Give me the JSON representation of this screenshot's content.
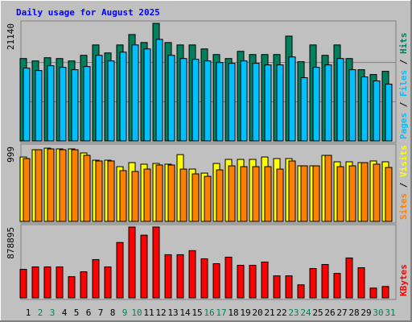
{
  "chart_data": [
    {
      "type": "bar",
      "title": "Daily usage for August 2025",
      "title_color": "#0000ff",
      "legend_separator": "/",
      "ylim": [
        0,
        21140
      ],
      "yticks": [
        21140
      ],
      "series": [
        {
          "name": "Pages",
          "color": "#00c0ff",
          "legend_only": true
        },
        {
          "name": "Files",
          "color": "#00c0ff",
          "values": [
            13086,
            12654,
            13517,
            13230,
            12798,
            13373,
            15387,
            14380,
            15962,
            17256,
            16537,
            18263,
            15387,
            14811,
            14668,
            14380,
            14092,
            13949,
            14380,
            13949,
            13661,
            13661,
            15099,
            11360,
            13230,
            13661,
            14811,
            12798,
            11504,
            10785,
            10210
          ]
        },
        {
          "name": "Hits",
          "color": "#00805c",
          "values": [
            14812,
            14380,
            14956,
            14812,
            14380,
            15388,
            17257,
            15819,
            17257,
            19127,
            17689,
            21140,
            17689,
            17257,
            17257,
            16538,
            15531,
            14812,
            16107,
            15531,
            15531,
            15531,
            18839,
            14237,
            17257,
            15388,
            17257,
            14812,
            12799,
            11936,
            12511
          ]
        }
      ]
    },
    {
      "type": "bar",
      "legend_separator": "/",
      "ylim": [
        0,
        999
      ],
      "yticks": [
        999
      ],
      "series": [
        {
          "name": "Sites",
          "color": "#ff8000",
          "values": [
            838,
            956,
            967,
            956,
            956,
            881,
            806,
            806,
            677,
            666,
            698,
            752,
            752,
            698,
            634,
            601,
            687,
            741,
            730,
            730,
            730,
            698,
            806,
            741,
            741,
            881,
            730,
            741,
            784,
            763,
            720
          ]
        },
        {
          "name": "Visits",
          "color": "#ffff00",
          "values": [
            859,
            956,
            977,
            967,
            967,
            913,
            816,
            816,
            730,
            784,
            763,
            773,
            763,
            891,
            698,
            644,
            773,
            827,
            827,
            827,
            859,
            838,
            838,
            741,
            741,
            881,
            795,
            795,
            784,
            806,
            795
          ]
        }
      ]
    },
    {
      "type": "bar",
      "ylim": [
        0,
        878895
      ],
      "yticks": [
        878895
      ],
      "categories": [
        "1",
        "2",
        "3",
        "4",
        "5",
        "6",
        "7",
        "8",
        "9",
        "10",
        "11",
        "12",
        "13",
        "14",
        "15",
        "16",
        "17",
        "18",
        "19",
        "20",
        "21",
        "22",
        "23",
        "24",
        "25",
        "26",
        "27",
        "28",
        "29",
        "30",
        "31"
      ],
      "category_colors": [
        "#000000",
        "#00805c",
        "#00805c",
        "#000000",
        "#000000",
        "#000000",
        "#000000",
        "#000000",
        "#00805c",
        "#00805c",
        "#000000",
        "#000000",
        "#000000",
        "#000000",
        "#000000",
        "#00805c",
        "#00805c",
        "#000000",
        "#000000",
        "#000000",
        "#000000",
        "#000000",
        "#00805c",
        "#00805c",
        "#000000",
        "#000000",
        "#000000",
        "#000000",
        "#000000",
        "#00805c",
        "#00805c"
      ],
      "series": [
        {
          "name": "KBytes",
          "color": "#ff0000",
          "values": [
            353570,
            383876,
            383876,
            383876,
            262652,
            323264,
            474794,
            383876,
            686936,
            878895,
            777854,
            878895,
            535406,
            535406,
            585916,
            484896,
            424284,
            505100,
            404080,
            404080,
            444488,
            272754,
            272754,
            161632,
            363672,
            414182,
            303060,
            494998,
            373774,
            121224,
            141428
          ]
        }
      ]
    }
  ]
}
